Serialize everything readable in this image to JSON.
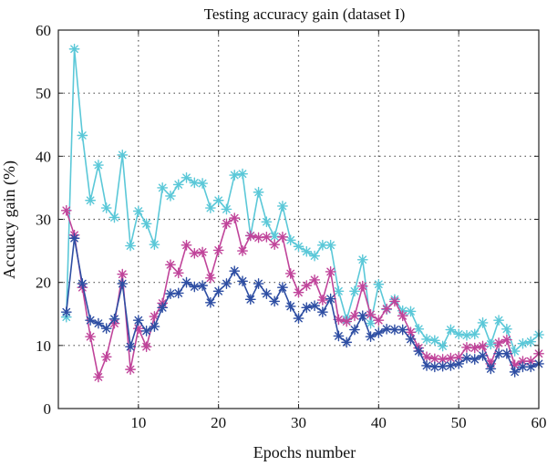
{
  "chart_data": {
    "type": "line",
    "title": "Testing accuracy gain (dataset I)",
    "xlabel": "Epochs number",
    "ylabel": "Accuacy gain (%)",
    "xlim": [
      0,
      60
    ],
    "ylim": [
      0,
      60
    ],
    "xticks": [
      0,
      10,
      20,
      30,
      40,
      50,
      60
    ],
    "yticks": [
      0,
      10,
      20,
      30,
      40,
      50,
      60
    ],
    "grid": true,
    "marker": "asterisk",
    "x": [
      1,
      2,
      3,
      4,
      5,
      6,
      7,
      8,
      9,
      10,
      11,
      12,
      13,
      14,
      15,
      16,
      17,
      18,
      19,
      20,
      21,
      22,
      23,
      24,
      25,
      26,
      27,
      28,
      29,
      30,
      31,
      32,
      33,
      34,
      35,
      36,
      37,
      38,
      39,
      40,
      41,
      42,
      43,
      44,
      45,
      46,
      47,
      48,
      49,
      50,
      51,
      52,
      53,
      54,
      55,
      56,
      57,
      58,
      59,
      60
    ],
    "series": [
      {
        "color": "#5bc8d8",
        "values": [
          14.5,
          57,
          43.3,
          33,
          38.6,
          31.8,
          30.3,
          40.2,
          25.8,
          31.3,
          29.3,
          26,
          35,
          33.7,
          35.5,
          36.6,
          35.8,
          35.7,
          31.8,
          33,
          31.6,
          37,
          37.2,
          27.4,
          34.3,
          29.6,
          27.3,
          32.1,
          26.7,
          25.7,
          24.9,
          24.2,
          25.9,
          25.9,
          18.6,
          14.1,
          18.6,
          23.6,
          13.5,
          19.7,
          15.7,
          17.3,
          15.5,
          15.4,
          12.6,
          11,
          10.8,
          9.9,
          12.5,
          11.8,
          11.6,
          11.8,
          13.6,
          10.2,
          14,
          12.6,
          9.1,
          10.3,
          10.6,
          11.7
        ]
      },
      {
        "color": "#c0449a",
        "values": [
          31.4,
          27.5,
          19.2,
          11.4,
          5,
          8.2,
          13.5,
          21.3,
          6.2,
          12.7,
          9.8,
          14.6,
          16.7,
          22.8,
          21.5,
          25.9,
          24.6,
          24.8,
          20.7,
          25.1,
          29.3,
          30.2,
          25,
          27.4,
          27.1,
          27.2,
          26,
          27.2,
          21.4,
          18.4,
          19.5,
          20.4,
          17.2,
          21.7,
          14.1,
          13.8,
          14.7,
          19.4,
          14.9,
          14,
          15.8,
          17,
          14.7,
          12.1,
          9.6,
          8.2,
          7.9,
          7.8,
          8,
          8.1,
          9.7,
          9.6,
          9.9,
          7.1,
          10.4,
          10.9,
          6.9,
          7.5,
          7.5,
          8.7
        ]
      },
      {
        "color": "#2e4ea3",
        "values": [
          15.3,
          27,
          19.8,
          14,
          13.5,
          12.7,
          14.2,
          19.8,
          9.8,
          14,
          12.3,
          13,
          16,
          18.2,
          18.3,
          20,
          19.3,
          19.5,
          16.8,
          18.6,
          19.8,
          21.8,
          20.2,
          17.3,
          19.8,
          18.2,
          17,
          19.2,
          16.2,
          14.3,
          16,
          16.3,
          15.3,
          17.4,
          11.5,
          10.5,
          12.5,
          14.7,
          11.4,
          12,
          12.6,
          12.5,
          12.5,
          11,
          9.1,
          6.8,
          6.6,
          6.7,
          6.8,
          7.1,
          8,
          7.8,
          8.4,
          6.3,
          8.7,
          8.7,
          5.8,
          6.6,
          6.6,
          7.1
        ]
      }
    ]
  }
}
